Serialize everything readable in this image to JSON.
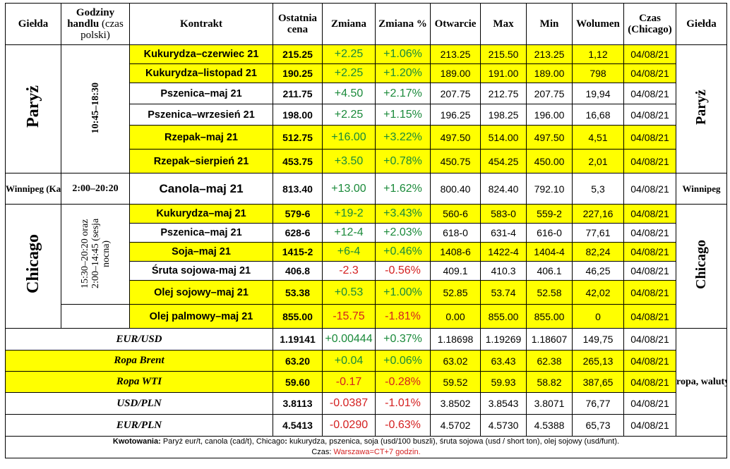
{
  "headers": {
    "exchange": "Giełda",
    "hours_bold": "Godziny handlu",
    "hours_normal": "(czas polski)",
    "contract": "Kontrakt",
    "last": "Ostatnia cena",
    "change": "Zmiana",
    "change_pct": "Zmiana %",
    "open": "Otwarcie",
    "max": "Max",
    "min": "Min",
    "volume": "Wolumen",
    "time": "Czas (Chicago)",
    "exchange_right": "Giełda"
  },
  "groups": {
    "paris": {
      "name": "Paryż",
      "hours": "10:45–18:30"
    },
    "winnipeg": {
      "name": "Winnipeg (Kanada)",
      "name_right": "Winnipeg",
      "hours": "2:00–20:20"
    },
    "chicago": {
      "name": "Chicago",
      "hours": "15:30–20:20 oraz 2:00–14:45 (sesja nocna)"
    },
    "fx": {
      "label": "ropa, waluty"
    }
  },
  "rows": [
    {
      "contract": "Kukurydza–czerwiec 21",
      "last": "215.25",
      "change": "+2.25",
      "pct": "+1.06%",
      "open": "213.25",
      "max": "215.50",
      "min": "213.25",
      "volume": "1,12",
      "time": "04/08/21"
    },
    {
      "contract": "Kukurydza–listopad 21",
      "last": "190.25",
      "change": "+2.25",
      "pct": "+1.20%",
      "open": "189.00",
      "max": "191.00",
      "min": "189.00",
      "volume": "798",
      "time": "04/08/21"
    },
    {
      "contract": "Pszenica–maj 21",
      "last": "211.75",
      "change": "+4.50",
      "pct": "+2.17%",
      "open": "207.75",
      "max": "212.75",
      "min": "207.75",
      "volume": "19,94",
      "time": "04/08/21"
    },
    {
      "contract": "Pszenica–wrzesień 21",
      "last": "198.00",
      "change": "+2.25",
      "pct": "+1.15%",
      "open": "196.25",
      "max": "198.25",
      "min": "196.00",
      "volume": "16,68",
      "time": "04/08/21"
    },
    {
      "contract": "Rzepak–maj 21",
      "last": "512.75",
      "change": "+16.00",
      "pct": "+3.22%",
      "open": "497.50",
      "max": "514.00",
      "min": "497.50",
      "volume": "4,51",
      "time": "04/08/21"
    },
    {
      "contract": "Rzepak–sierpień 21",
      "last": "453.75",
      "change": "+3.50",
      "pct": "+0.78%",
      "open": "450.75",
      "max": "454.25",
      "min": "450.00",
      "volume": "2,01",
      "time": "04/08/21"
    },
    {
      "contract": "Canola–maj 21",
      "last": "813.40",
      "change": "+13.00",
      "pct": "+1.62%",
      "open": "800.40",
      "max": "824.40",
      "min": "792.10",
      "volume": "5,3",
      "time": "04/08/21"
    },
    {
      "contract": "Kukurydza–maj 21",
      "last": "579-6",
      "change": "+19-2",
      "pct": "+3.43%",
      "open": "560-6",
      "max": "583-0",
      "min": "559-2",
      "volume": "227,16",
      "time": "04/08/21"
    },
    {
      "contract": "Pszenica–maj 21",
      "last": "628-6",
      "change": "+12-4",
      "pct": "+2.03%",
      "open": "618-0",
      "max": "631-4",
      "min": "616-0",
      "volume": "77,61",
      "time": "04/08/21"
    },
    {
      "contract": "Soja–maj 21",
      "last": "1415-2",
      "change": "+6-4",
      "pct": "+0.46%",
      "open": "1408-6",
      "max": "1422-4",
      "min": "1404-4",
      "volume": "82,24",
      "time": "04/08/21"
    },
    {
      "contract": "Śruta sojowa-maj 21",
      "last": "406.8",
      "change": "-2.3",
      "pct": "-0.56%",
      "open": "409.1",
      "max": "410.3",
      "min": "406.1",
      "volume": "46,25",
      "time": "04/08/21"
    },
    {
      "contract": "Olej sojowy–maj 21",
      "last": "53.38",
      "change": "+0.53",
      "pct": "+1.00%",
      "open": "52.85",
      "max": "53.74",
      "min": "52.58",
      "volume": "42,02",
      "time": "04/08/21"
    },
    {
      "contract": "Olej palmowy–maj 21",
      "last": "855.00",
      "change": "-15.75",
      "pct": "-1.81%",
      "open": "0.00",
      "max": "855.00",
      "min": "855.00",
      "volume": "0",
      "time": "04/08/21"
    },
    {
      "contract": "EUR/USD",
      "last": "1.19141",
      "change": "+0.00444",
      "pct": "+0.37%",
      "open": "1.18698",
      "max": "1.19269",
      "min": "1.18607",
      "volume": "149,75",
      "time": "04/08/21"
    },
    {
      "contract": "Ropa Brent",
      "last": "63.20",
      "change": "+0.04",
      "pct": "+0.06%",
      "open": "63.02",
      "max": "63.43",
      "min": "62.38",
      "volume": "265,13",
      "time": "04/08/21"
    },
    {
      "contract": "Ropa WTI",
      "last": "59.60",
      "change": "-0.17",
      "pct": "-0.28%",
      "open": "59.52",
      "max": "59.93",
      "min": "58.82",
      "volume": "387,65",
      "time": "04/08/21"
    },
    {
      "contract": "USD/PLN",
      "last": "3.8113",
      "change": "-0.0387",
      "pct": "-1.01%",
      "open": "3.8502",
      "max": "3.8543",
      "min": "3.8071",
      "volume": "76,77",
      "time": "04/08/21"
    },
    {
      "contract": "EUR/PLN",
      "last": "4.5413",
      "change": "-0.0290",
      "pct": "-0.63%",
      "open": "4.5702",
      "max": "4.5730",
      "min": "4.5388",
      "volume": "65,73",
      "time": "04/08/21"
    }
  ],
  "footer": {
    "quote_label": "Kwotowania:",
    "quote_text": " Paryż eur/t, canola (cad/t), Chicago",
    "quote_colon": ":",
    "quote_rest": " kukurydza, pszenica, soja (usd/100 buszli), śruta sojowa (usd / short ton), olej sojowy (usd/funt).",
    "time_label": "Czas:",
    "time_text": " Warszawa=CT+7 godzin."
  },
  "colors": {
    "highlight": "#ffff00",
    "up": "#1a8a3a",
    "down": "#d42020"
  }
}
